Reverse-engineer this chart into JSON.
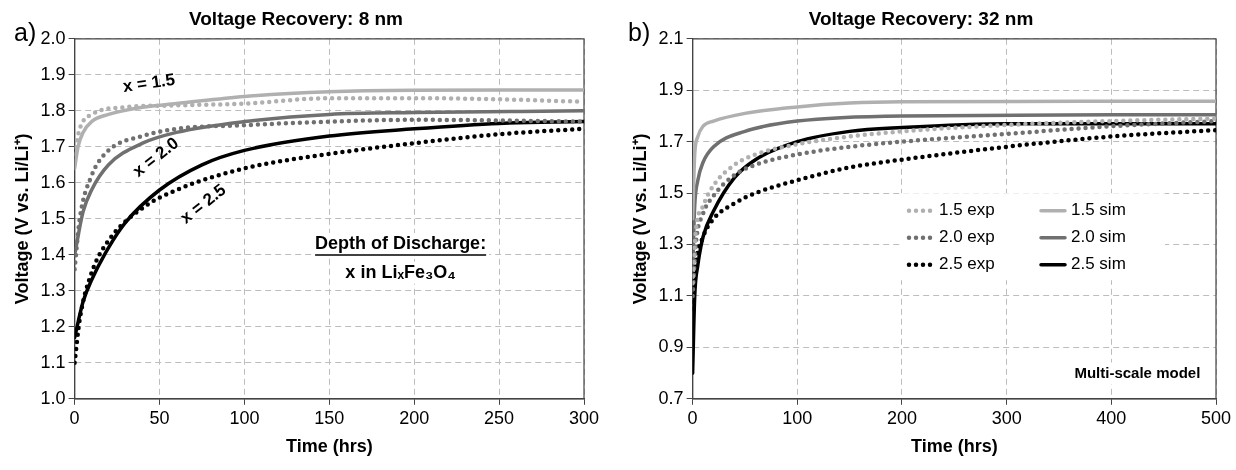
{
  "chart_data": [
    {
      "type": "line",
      "title": "Voltage Recovery: 8 nm",
      "xlabel": "Time (hrs)",
      "ylabel": "Voltage (V vs. Li/Li⁺)",
      "xlim": [
        0,
        300
      ],
      "xticks": [
        0,
        50,
        100,
        150,
        200,
        250,
        300
      ],
      "ylim": [
        1.0,
        2.0
      ],
      "yticks": [
        {
          "value": 1.0,
          "label": "1.0"
        },
        1.1,
        1.2,
        1.3,
        1.4,
        1.5,
        1.6,
        1.7,
        1.8,
        1.9,
        {
          "value": 2.0,
          "label": "2.0"
        }
      ],
      "grid": true,
      "legend": false,
      "marker": "none",
      "series": [
        {
          "color": "#b0b0b0",
          "line_style": "dotted",
          "x": [
            0,
            3,
            10,
            30,
            60,
            100,
            150,
            200,
            250,
            300
          ],
          "values": [
            1.68,
            1.75,
            1.79,
            1.81,
            1.815,
            1.82,
            1.835,
            1.835,
            1.832,
            1.825
          ]
        },
        {
          "color": "#707070",
          "line_style": "dotted",
          "x": [
            0,
            3,
            10,
            20,
            40,
            60,
            100,
            150,
            200,
            300
          ],
          "values": [
            1.36,
            1.5,
            1.62,
            1.69,
            1.73,
            1.75,
            1.76,
            1.77,
            1.775,
            1.77
          ]
        },
        {
          "color": "#000000",
          "line_style": "dotted",
          "x": [
            0,
            3,
            10,
            20,
            40,
            60,
            100,
            150,
            200,
            250,
            300
          ],
          "values": [
            1.1,
            1.22,
            1.35,
            1.44,
            1.53,
            1.58,
            1.64,
            1.68,
            1.71,
            1.735,
            1.75
          ]
        },
        {
          "color": "#b0b0b0",
          "line_style": "solid",
          "x": [
            0,
            2,
            5,
            10,
            20,
            40,
            60,
            100,
            150,
            200,
            300
          ],
          "values": [
            1.64,
            1.7,
            1.74,
            1.77,
            1.79,
            1.81,
            1.82,
            1.84,
            1.853,
            1.857,
            1.858
          ]
        },
        {
          "color": "#707070",
          "line_style": "solid",
          "x": [
            0,
            5,
            10,
            20,
            40,
            60,
            100,
            150,
            200,
            300
          ],
          "values": [
            1.4,
            1.52,
            1.58,
            1.65,
            1.71,
            1.74,
            1.77,
            1.79,
            1.795,
            1.8
          ]
        },
        {
          "color": "#000000",
          "line_style": "solid",
          "x": [
            0,
            5,
            10,
            20,
            30,
            50,
            75,
            100,
            150,
            200,
            250,
            300
          ],
          "values": [
            1.17,
            1.27,
            1.33,
            1.42,
            1.49,
            1.58,
            1.65,
            1.69,
            1.73,
            1.75,
            1.765,
            1.77
          ]
        }
      ],
      "annotations": [
        "a)",
        "x = 1.5",
        "x = 2.0",
        "x = 2.5",
        "Depth of Discharge:",
        "x in LiₓFe₃O₄"
      ]
    },
    {
      "type": "line",
      "title": "Voltage Recovery: 32 nm",
      "xlabel": "Time (hrs)",
      "ylabel": "Voltage (V vs. Li/Li⁺)",
      "xlim": [
        0,
        500
      ],
      "xticks": [
        0,
        100,
        200,
        300,
        400,
        500
      ],
      "ylim": [
        0.7,
        2.1
      ],
      "yticks": [
        0.7,
        0.9,
        1.1,
        1.3,
        1.5,
        1.7,
        1.9,
        2.1
      ],
      "grid": true,
      "legend": "right",
      "marker": "none",
      "series": [
        {
          "name": "1.5 exp",
          "color": "#b0b0b0",
          "line_style": "dotted",
          "x": [
            0,
            3,
            10,
            20,
            40,
            60,
            100,
            150,
            200,
            300,
            400,
            500
          ],
          "values": [
            1.15,
            1.35,
            1.45,
            1.53,
            1.61,
            1.65,
            1.69,
            1.72,
            1.74,
            1.765,
            1.78,
            1.79
          ]
        },
        {
          "name": "2.0 exp",
          "color": "#707070",
          "line_style": "dotted",
          "x": [
            0,
            3,
            10,
            20,
            40,
            60,
            100,
            150,
            200,
            300,
            400,
            500
          ],
          "values": [
            1.1,
            1.3,
            1.42,
            1.49,
            1.57,
            1.61,
            1.65,
            1.68,
            1.7,
            1.73,
            1.76,
            1.78
          ]
        },
        {
          "name": "2.5 exp",
          "color": "#000000",
          "line_style": "dotted",
          "x": [
            0,
            3,
            10,
            20,
            40,
            60,
            100,
            150,
            200,
            300,
            400,
            500
          ],
          "values": [
            1.05,
            1.22,
            1.33,
            1.4,
            1.46,
            1.5,
            1.55,
            1.6,
            1.63,
            1.68,
            1.72,
            1.745
          ]
        },
        {
          "name": "1.5 sim",
          "color": "#b0b0b0",
          "line_style": "solid",
          "x": [
            0,
            2,
            5,
            10,
            20,
            50,
            100,
            150,
            200,
            500
          ],
          "values": [
            1.4,
            1.65,
            1.72,
            1.76,
            1.78,
            1.81,
            1.835,
            1.85,
            1.855,
            1.857
          ]
        },
        {
          "name": "2.0 sim",
          "color": "#707070",
          "line_style": "solid",
          "x": [
            0,
            2,
            5,
            10,
            20,
            50,
            100,
            200,
            500
          ],
          "values": [
            1.2,
            1.45,
            1.55,
            1.62,
            1.68,
            1.74,
            1.78,
            1.8,
            1.805
          ]
        },
        {
          "name": "2.5 sim",
          "color": "#000000",
          "line_style": "solid",
          "x": [
            0,
            2,
            5,
            10,
            20,
            40,
            60,
            100,
            150,
            200,
            300,
            500
          ],
          "values": [
            0.8,
            1.1,
            1.22,
            1.33,
            1.43,
            1.56,
            1.63,
            1.7,
            1.74,
            1.755,
            1.77,
            1.77
          ]
        }
      ],
      "annotations": [
        "b)",
        "Multi-scale model"
      ]
    }
  ]
}
